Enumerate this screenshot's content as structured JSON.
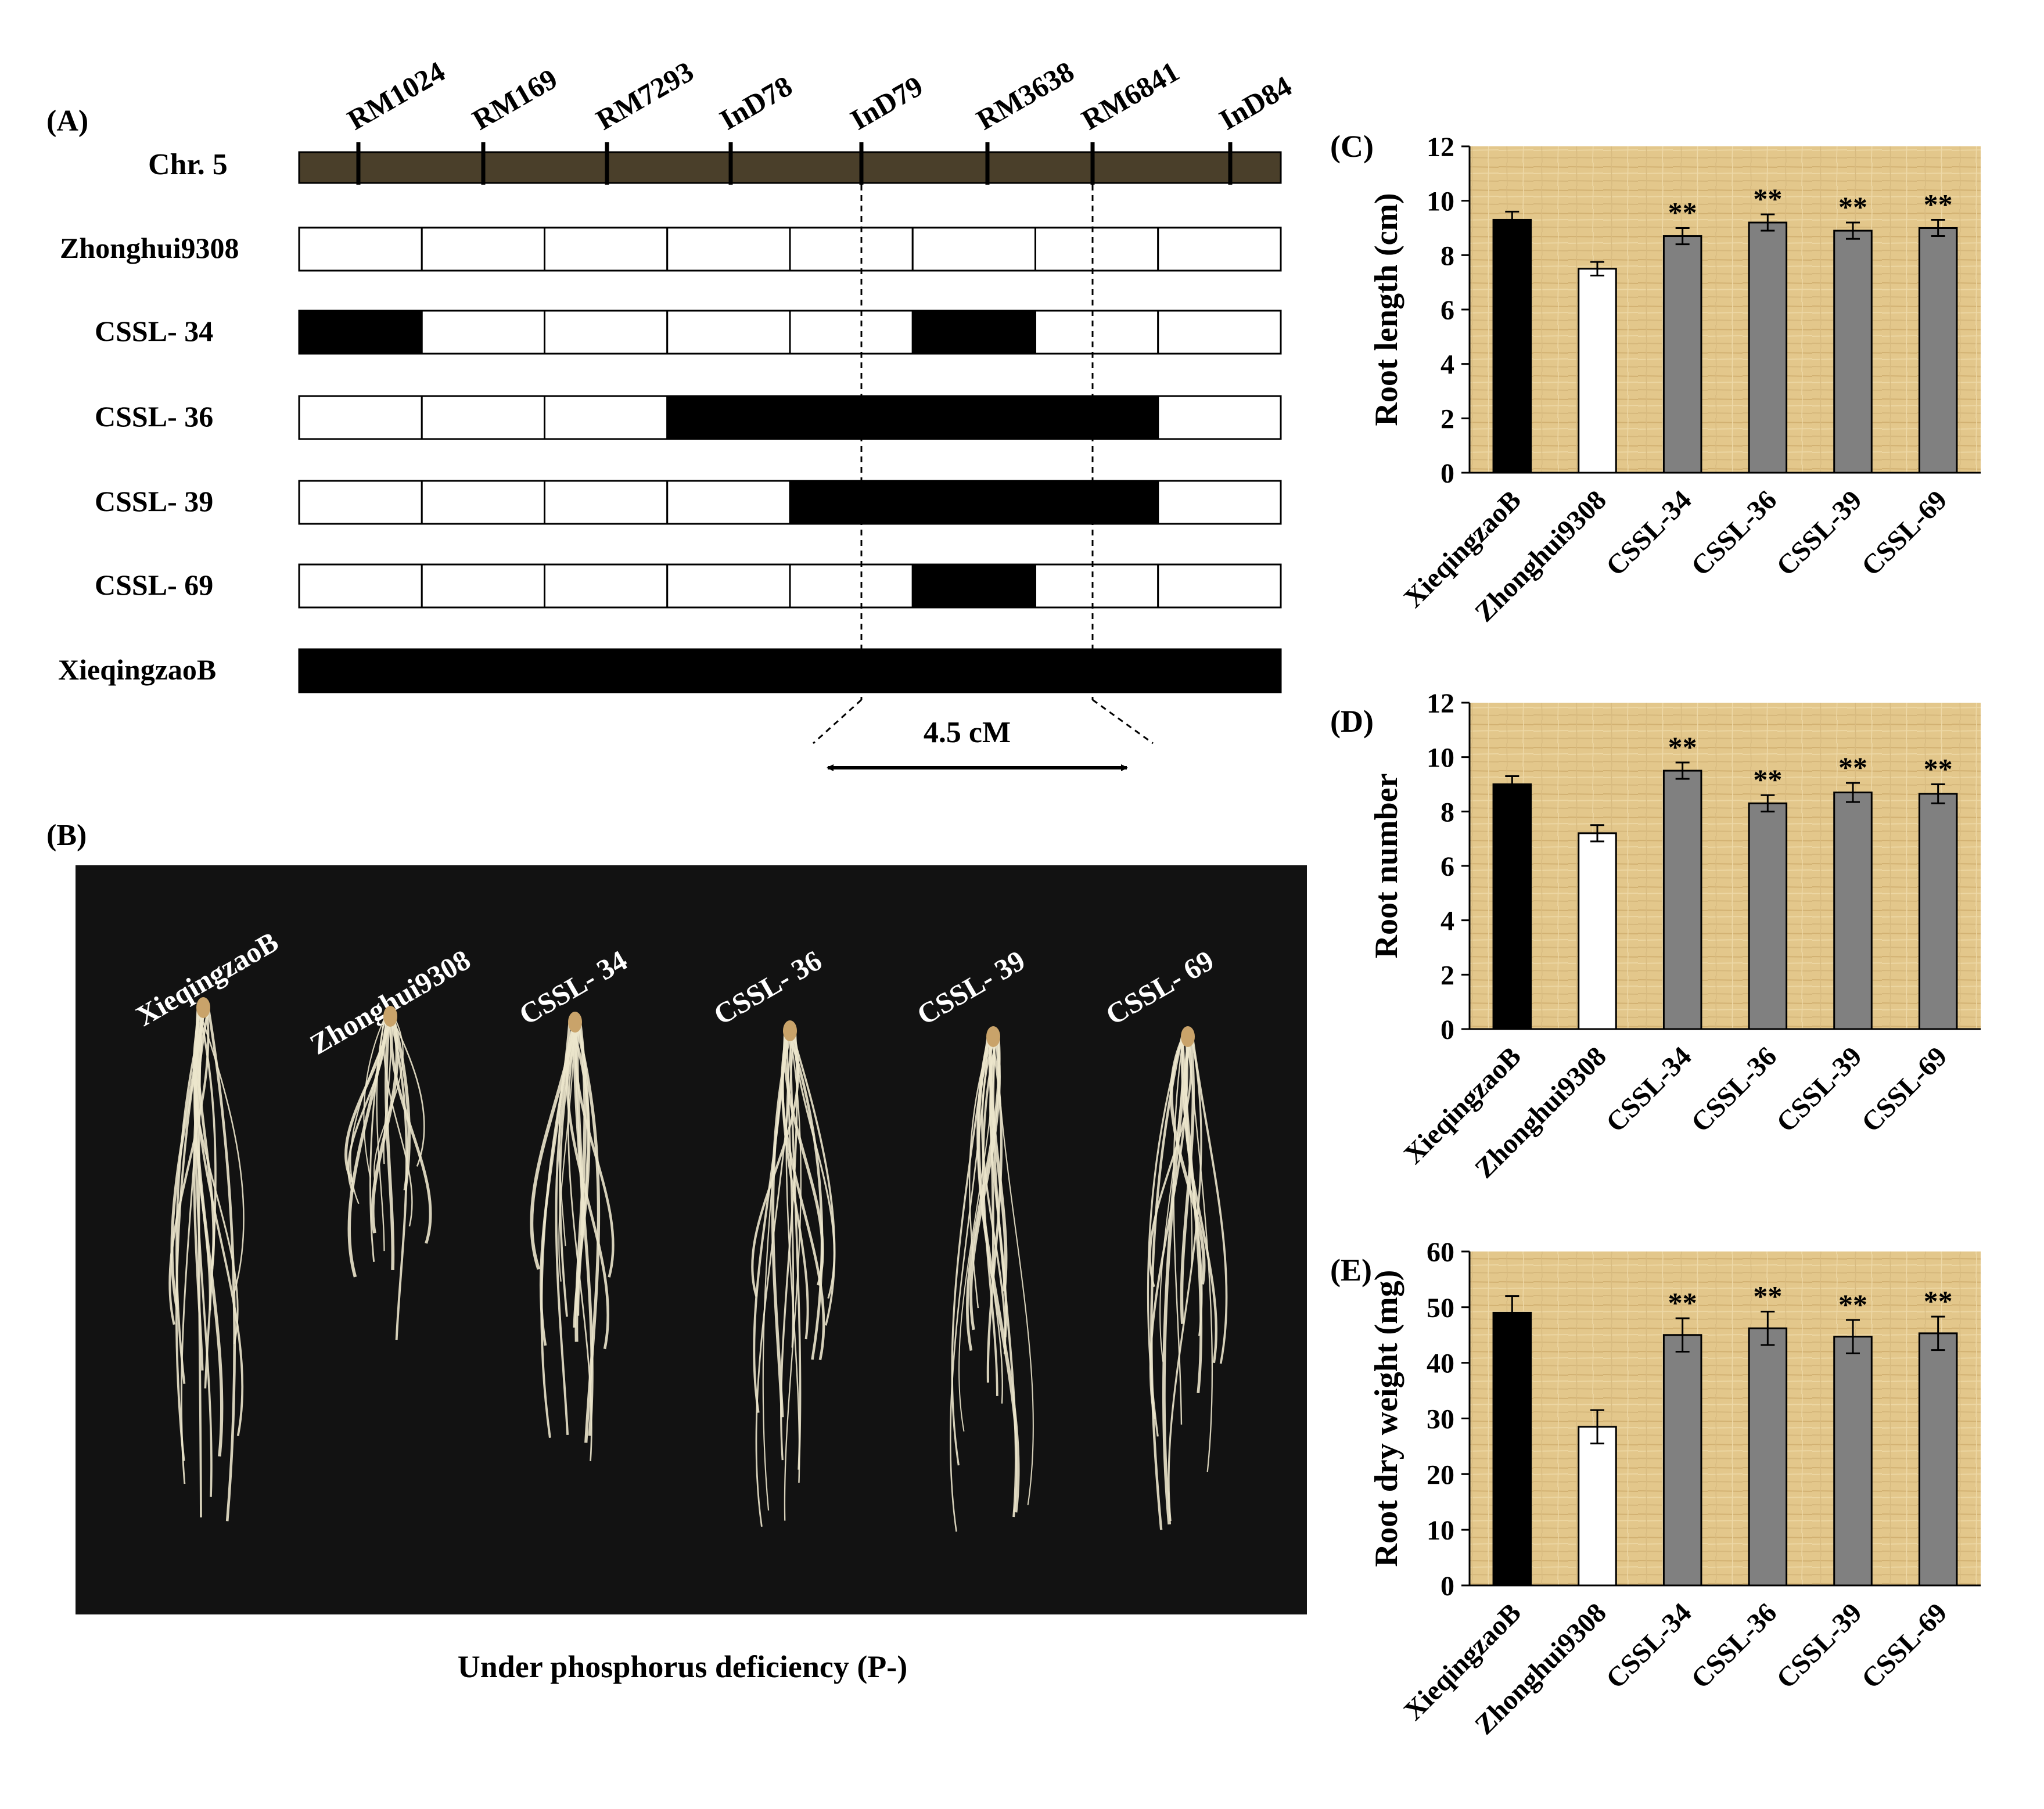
{
  "panel_a": {
    "label": "(A)",
    "chromosome_label": "Chr. 5",
    "markers": [
      "RM1024",
      "RM169",
      "RM7293",
      "InD78",
      "InD79",
      "RM3638",
      "RM6841",
      "InD84"
    ],
    "lines": [
      {
        "name": "Zhonghui9308",
        "segments": [
          0,
          0,
          0,
          0,
          0,
          0,
          0,
          0
        ]
      },
      {
        "name": "CSSL- 34",
        "segments": [
          1,
          0,
          0,
          0,
          0,
          1,
          0,
          0
        ]
      },
      {
        "name": "CSSL- 36",
        "segments": [
          0,
          0,
          0,
          1,
          1,
          1,
          1,
          0
        ]
      },
      {
        "name": "CSSL- 39",
        "segments": [
          0,
          0,
          0,
          0,
          1,
          1,
          1,
          0
        ]
      },
      {
        "name": "CSSL- 69",
        "segments": [
          0,
          0,
          0,
          0,
          0,
          1,
          0,
          0
        ]
      },
      {
        "name": "XieqingzaoB",
        "segments": [
          1,
          1,
          1,
          1,
          1,
          1,
          1,
          1
        ]
      }
    ],
    "interval_label": "4.5 cM",
    "colors": {
      "chromosome": "#4a3f2a",
      "introgression": "#000000",
      "background": "#ffffff"
    }
  },
  "panel_b": {
    "label": "(B)",
    "plant_labels": [
      "XieqingzaoB",
      "Zhonghui9308",
      "CSSL- 34",
      "CSSL- 36",
      "CSSL- 39",
      "CSSL- 69"
    ],
    "caption": "Under phosphorus deficiency (P-)",
    "photo_background": "#121212",
    "root_color": "#ece6cc"
  },
  "chart_data": [
    {
      "panel": "(C)",
      "type": "bar",
      "categories": [
        "XieqingzaoB",
        "Zhonghui9308",
        "CSSL-34",
        "CSSL-36",
        "CSSL-39",
        "CSSL-69"
      ],
      "values": [
        9.3,
        7.5,
        8.7,
        9.2,
        8.9,
        9.0
      ],
      "errors": [
        0.3,
        0.25,
        0.3,
        0.3,
        0.3,
        0.3
      ],
      "significance": [
        "",
        "",
        "**",
        "**",
        "**",
        "**"
      ],
      "ylabel": "Root length (cm)",
      "ylim": [
        0,
        12
      ],
      "yticks": [
        0,
        2,
        4,
        6,
        8,
        10,
        12
      ],
      "bar_colors": [
        "#000000",
        "#ffffff",
        "#808080",
        "#808080",
        "#808080",
        "#808080"
      ],
      "plot_background": "#e3c78b"
    },
    {
      "panel": "(D)",
      "type": "bar",
      "categories": [
        "XieqingzaoB",
        "Zhonghui9308",
        "CSSL-34",
        "CSSL-36",
        "CSSL-39",
        "CSSL-69"
      ],
      "values": [
        9.0,
        7.2,
        9.5,
        8.3,
        8.7,
        8.65
      ],
      "errors": [
        0.3,
        0.3,
        0.3,
        0.3,
        0.35,
        0.35
      ],
      "significance": [
        "",
        "",
        "**",
        "**",
        "**",
        "**"
      ],
      "ylabel": "Root number",
      "ylim": [
        0,
        12
      ],
      "yticks": [
        0,
        2,
        4,
        6,
        8,
        10,
        12
      ],
      "bar_colors": [
        "#000000",
        "#ffffff",
        "#808080",
        "#808080",
        "#808080",
        "#808080"
      ],
      "plot_background": "#e3c78b"
    },
    {
      "panel": "(E)",
      "type": "bar",
      "categories": [
        "XieqingzaoB",
        "Zhonghui9308",
        "CSSL-34",
        "CSSL-36",
        "CSSL-39",
        "CSSL-69"
      ],
      "values": [
        49,
        28.5,
        45,
        46.2,
        44.7,
        45.3
      ],
      "errors": [
        3,
        3,
        3,
        3,
        3,
        3
      ],
      "significance": [
        "",
        "",
        "**",
        "**",
        "**",
        "**"
      ],
      "ylabel": "Root dry weight (mg)",
      "ylim": [
        0,
        60
      ],
      "yticks": [
        0,
        10,
        20,
        30,
        40,
        50,
        60
      ],
      "bar_colors": [
        "#000000",
        "#ffffff",
        "#808080",
        "#808080",
        "#808080",
        "#808080"
      ],
      "plot_background": "#e3c78b"
    }
  ]
}
